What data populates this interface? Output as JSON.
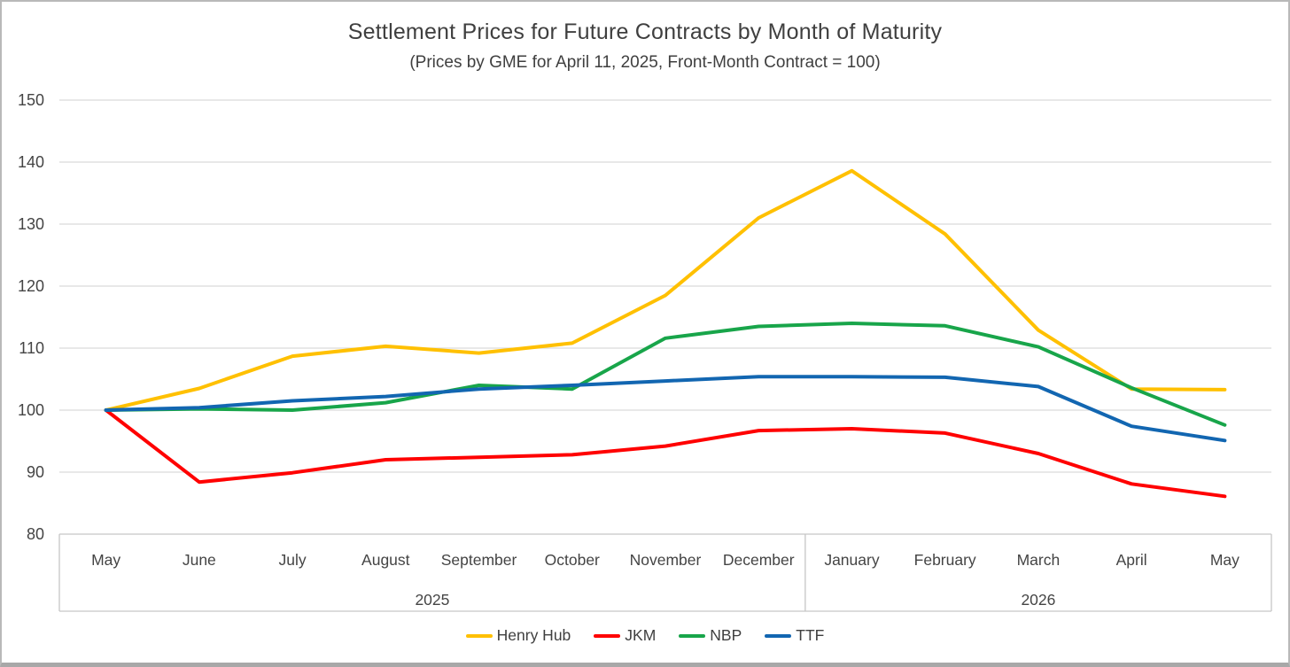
{
  "title": "Settlement Prices for Future Contracts by Month of Maturity",
  "subtitle": "(Prices by GME for April 11, 2025, Front-Month Contract = 100)",
  "colors": {
    "henry_hub": "#FFC000",
    "jkm": "#FF0000",
    "nbp": "#18A54A",
    "ttf": "#1266B1",
    "gridline": "#D9D9D9",
    "axis_line": "#C6C6C6",
    "text": "#3f3f3f"
  },
  "chart_data": {
    "type": "line",
    "categories": [
      "May",
      "June",
      "July",
      "August",
      "September",
      "October",
      "November",
      "December",
      "January",
      "February",
      "March",
      "April",
      "May"
    ],
    "year_groups": [
      {
        "label": "2025",
        "count": 8
      },
      {
        "label": "2026",
        "count": 5
      }
    ],
    "series": [
      {
        "name": "Henry Hub",
        "color": "#FFC000",
        "values": [
          100,
          103.5,
          108.7,
          110.3,
          109.2,
          110.8,
          118.5,
          131,
          138.6,
          128.4,
          112.9,
          103.4,
          103.3
        ]
      },
      {
        "name": "JKM",
        "color": "#FF0000",
        "values": [
          100,
          88.4,
          89.9,
          92,
          92.4,
          92.8,
          94.2,
          96.7,
          97,
          96.3,
          93,
          88.1,
          86.1
        ]
      },
      {
        "name": "NBP",
        "color": "#18A54A",
        "values": [
          100,
          100.2,
          100,
          101.2,
          104,
          103.4,
          111.6,
          113.5,
          114,
          113.6,
          110.2,
          103.6,
          97.6
        ]
      },
      {
        "name": "TTF",
        "color": "#1266B1",
        "values": [
          100,
          100.4,
          101.5,
          102.2,
          103.4,
          104,
          104.7,
          105.4,
          105.4,
          105.3,
          103.8,
          97.4,
          95.1
        ]
      }
    ],
    "title": "Settlement Prices for Future Contracts by Month of Maturity",
    "subtitle": "(Prices by GME for April 11, 2025, Front-Month Contract = 100)",
    "xlabel": "",
    "ylabel": "",
    "ylim": [
      80,
      150
    ],
    "ytick_step": 10,
    "grid": true,
    "legend_position": "bottom"
  }
}
